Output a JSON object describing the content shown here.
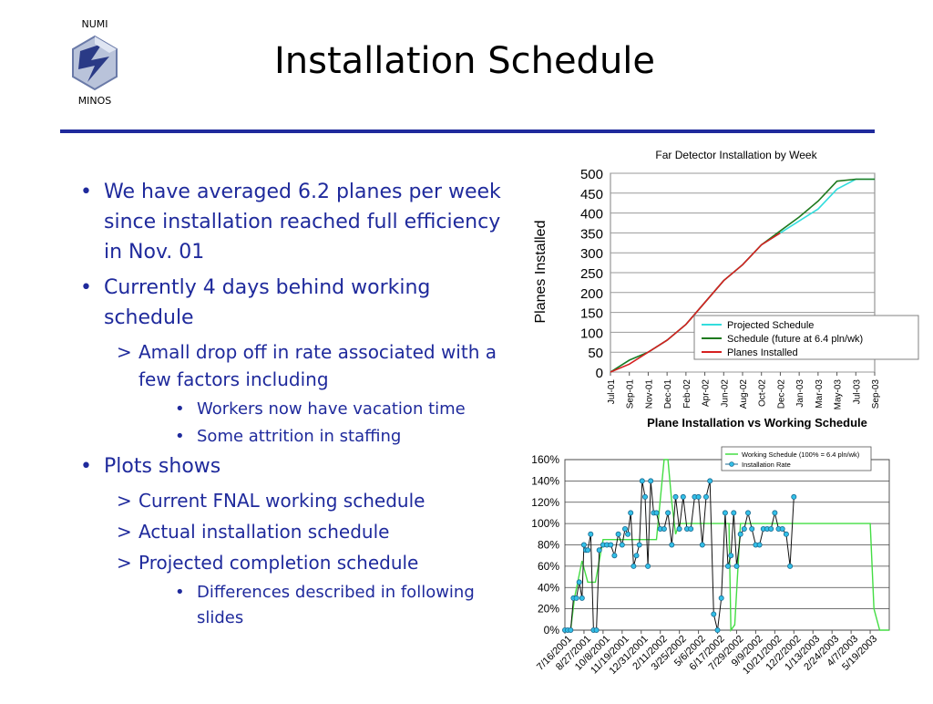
{
  "logo": {
    "top_label": "NUMI",
    "bottom_label": "MINOS"
  },
  "slide": {
    "title": "Installation Schedule"
  },
  "bullets": [
    {
      "level": 1,
      "text": "We have averaged 6.2 planes per week since installation reached full efficiency in Nov. 01"
    },
    {
      "level": 1,
      "text": "Currently 4 days behind working schedule"
    },
    {
      "level": 2,
      "text": "Amall drop off in rate associated with a few factors including"
    },
    {
      "level": 3,
      "text": "Workers now have vacation time"
    },
    {
      "level": 3,
      "text": "Some attrition in staffing"
    },
    {
      "level": 1,
      "text": "Plots shows"
    },
    {
      "level": 2,
      "text": "Current FNAL working schedule"
    },
    {
      "level": 2,
      "text": "Actual installation schedule"
    },
    {
      "level": 2,
      "text": "Projected completion schedule"
    },
    {
      "level": 3,
      "text": "Differences described in following slides"
    }
  ],
  "chart_data": [
    {
      "type": "line",
      "title": "Far Detector Installation by Week",
      "xlabel": "",
      "ylabel": "Planes Installed",
      "ylim": [
        0,
        500
      ],
      "yticks": [
        0,
        50,
        100,
        150,
        200,
        250,
        300,
        350,
        400,
        450,
        500
      ],
      "xticks": [
        "Jul-01",
        "Sep-01",
        "Nov-01",
        "Dec-01",
        "Feb-02",
        "Apr-02",
        "Jun-02",
        "Aug-02",
        "Oct-02",
        "Dec-02",
        "Jan-03",
        "Mar-03",
        "May-03",
        "Jul-03",
        "Sep-03"
      ],
      "grid": "horizontal",
      "legend": "bottom-right",
      "series": [
        {
          "name": "Projected Schedule",
          "color": "#33dddd",
          "x": [
            0,
            1,
            2,
            3,
            4,
            5,
            6,
            7,
            8,
            9,
            10,
            11,
            12,
            13,
            14
          ],
          "values": [
            0,
            30,
            50,
            80,
            120,
            175,
            230,
            270,
            320,
            350,
            380,
            410,
            460,
            485,
            485
          ]
        },
        {
          "name": "Schedule (future at 6.4 pln/wk)",
          "color": "#1e7a1e",
          "x": [
            0,
            1,
            2,
            3,
            4,
            5,
            6,
            7,
            8,
            9,
            10,
            11,
            12,
            13,
            14
          ],
          "values": [
            0,
            30,
            50,
            80,
            120,
            175,
            230,
            270,
            320,
            355,
            390,
            430,
            480,
            485,
            485
          ]
        },
        {
          "name": "Planes Installed",
          "color": "#d62020",
          "x": [
            0,
            1,
            2,
            3,
            4,
            5,
            6,
            7,
            8,
            9,
            10,
            11,
            12,
            13,
            14
          ],
          "values": [
            0,
            20,
            50,
            80,
            120,
            175,
            230,
            270,
            320,
            350,
            null,
            null,
            null,
            null,
            null
          ]
        }
      ]
    },
    {
      "type": "line",
      "title": "Plane Installation vs Working Schedule",
      "xlabel": "",
      "ylabel": "",
      "ylim": [
        0,
        160
      ],
      "yticks": [
        "0%",
        "20%",
        "40%",
        "60%",
        "80%",
        "100%",
        "120%",
        "140%",
        "160%"
      ],
      "xticks": [
        "7/16/2001",
        "8/27/2001",
        "10/8/2001",
        "11/19/2001",
        "12/31/2001",
        "2/11/2002",
        "3/25/2002",
        "5/6/2002",
        "6/17/2002",
        "7/29/2002",
        "9/9/2002",
        "10/21/2002",
        "12/2/2002",
        "1/13/2003",
        "2/24/2003",
        "4/7/2003",
        "5/19/2003"
      ],
      "grid": "horizontal",
      "legend": "top-right",
      "series": [
        {
          "name": "Working Schedule (100% = 6.4 pln/wk)",
          "color": "#44dd44",
          "x": [
            0,
            0.3,
            0.5,
            0.9,
            1.2,
            1.6,
            2.0,
            2.4,
            2.8,
            3.2,
            3.6,
            4.0,
            4.4,
            4.8,
            5.2,
            5.4,
            5.6,
            5.8,
            6.0,
            6.2,
            6.6,
            7.0,
            7.4,
            7.8,
            8.2,
            8.6,
            8.7,
            8.9,
            9.2,
            9.6,
            10.0,
            11.0,
            12.0,
            13.0,
            14.0,
            15.0,
            16.0,
            16.2,
            16.5,
            16.8,
            17.0
          ],
          "values": [
            0,
            0,
            30,
            65,
            45,
            45,
            85,
            85,
            85,
            85,
            85,
            85,
            85,
            85,
            160,
            160,
            120,
            90,
            100,
            100,
            100,
            100,
            100,
            100,
            100,
            100,
            0,
            5,
            100,
            100,
            100,
            100,
            100,
            100,
            100,
            100,
            100,
            20,
            0,
            0,
            0
          ]
        },
        {
          "name": "Installation Rate",
          "color": "#1e90c8",
          "x": [
            0,
            0.15,
            0.3,
            0.45,
            0.6,
            0.75,
            0.9,
            1.0,
            1.1,
            1.2,
            1.35,
            1.5,
            1.65,
            1.8,
            2.0,
            2.2,
            2.4,
            2.6,
            2.8,
            3.0,
            3.15,
            3.3,
            3.45,
            3.6,
            3.75,
            3.9,
            4.05,
            4.2,
            4.35,
            4.5,
            4.65,
            4.8,
            5.0,
            5.2,
            5.4,
            5.6,
            5.8,
            6.0,
            6.2,
            6.4,
            6.6,
            6.8,
            7.0,
            7.2,
            7.4,
            7.6,
            7.8,
            8.0,
            8.2,
            8.4,
            8.55,
            8.7,
            8.85,
            9.0,
            9.2,
            9.4,
            9.6,
            9.8,
            10.0,
            10.2,
            10.4,
            10.6,
            10.8,
            11.0,
            11.2,
            11.4,
            11.6,
            11.8,
            12.0
          ],
          "values": [
            0,
            0,
            0,
            30,
            30,
            45,
            30,
            80,
            75,
            75,
            90,
            0,
            0,
            75,
            80,
            80,
            80,
            70,
            90,
            80,
            95,
            90,
            110,
            60,
            70,
            80,
            140,
            125,
            60,
            140,
            110,
            110,
            95,
            95,
            110,
            80,
            125,
            95,
            125,
            95,
            95,
            125,
            125,
            80,
            125,
            140,
            15,
            0,
            30,
            110,
            60,
            70,
            110,
            60,
            90,
            95,
            110,
            95,
            80,
            80,
            95,
            95,
            95,
            110,
            95,
            95,
            90,
            60,
            125
          ]
        }
      ]
    }
  ]
}
